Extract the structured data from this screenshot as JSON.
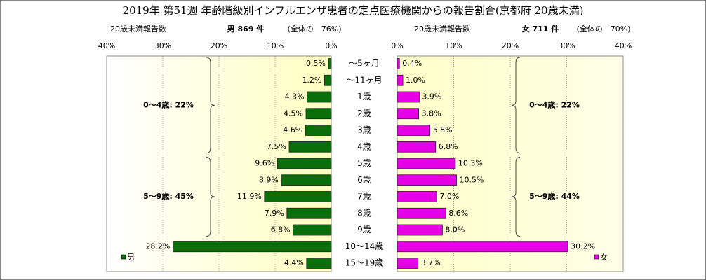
{
  "chart_data": {
    "type": "butterfly",
    "title": "2019年 第51週 年齢階級別インフルエンザ患者の定点医療機関からの報告割合(京都府 20歳未満)",
    "categories": [
      "～5ヶ月",
      "～11ヶ月",
      "1歳",
      "2歳",
      "3歳",
      "4歳",
      "5歳",
      "6歳",
      "7歳",
      "8歳",
      "9歳",
      "10～14歳",
      "15～19歳"
    ],
    "xlim": [
      0,
      40
    ],
    "xticks": [
      {
        "value": 0,
        "label": "0%"
      },
      {
        "value": 10,
        "label": "10%"
      },
      {
        "value": 20,
        "label": "20%"
      },
      {
        "value": 30,
        "label": "30%"
      },
      {
        "value": 40,
        "label": "40%"
      }
    ],
    "grid": true,
    "series": [
      {
        "name": "男",
        "color": "#0a6e0a",
        "header": [
          "20歳未満報告数",
          "男 869 件",
          "(全体の　76%)"
        ],
        "values": [
          0.5,
          1.2,
          4.3,
          4.5,
          4.6,
          7.5,
          9.6,
          8.9,
          11.9,
          7.9,
          6.8,
          28.2,
          4.4
        ],
        "value_labels": [
          "0.5%",
          "1.2%",
          "4.3%",
          "4.5%",
          "4.6%",
          "7.5%",
          "9.6%",
          "8.9%",
          "11.9%",
          "7.9%",
          "6.8%",
          "28.2%",
          "4.4%"
        ],
        "annotations": [
          "0～4歳: 22%",
          "5～9歳: 45%"
        ]
      },
      {
        "name": "女",
        "color": "#e600e6",
        "header": [
          "20歳未満報告数",
          "女 711 件",
          "(全体の　70%)"
        ],
        "values": [
          0.4,
          1.0,
          3.9,
          3.8,
          5.8,
          6.8,
          10.3,
          10.5,
          7.0,
          8.6,
          8.0,
          30.2,
          3.7
        ],
        "value_labels": [
          "0.4%",
          "1.0%",
          "3.9%",
          "3.8%",
          "5.8%",
          "6.8%",
          "10.3%",
          "10.5%",
          "7.0%",
          "8.6%",
          "8.0%",
          "30.2%",
          "3.7%"
        ],
        "annotations": [
          "0～4歳: 22%",
          "5～9歳: 44%"
        ]
      }
    ]
  }
}
